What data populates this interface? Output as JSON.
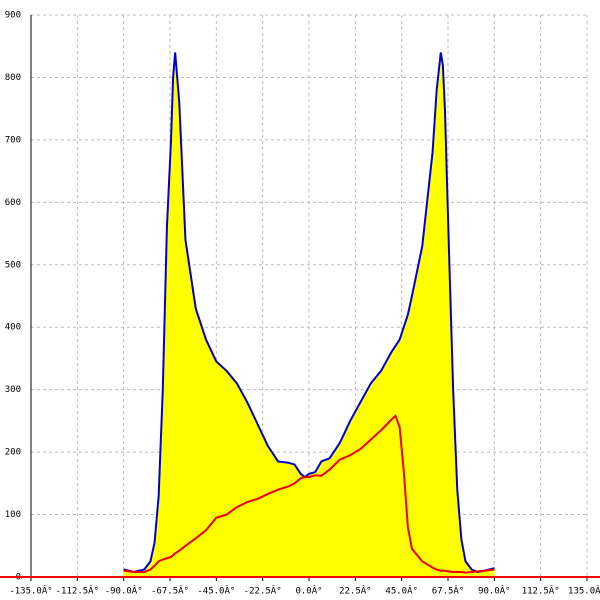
{
  "chart_data": {
    "type": "area",
    "x": [
      -90,
      -85,
      -80,
      -77,
      -75,
      -73,
      -71,
      -69,
      -67,
      -66,
      -65,
      -63,
      -60,
      -55,
      -50,
      -45,
      -40,
      -35,
      -30,
      -25,
      -20,
      -15,
      -10,
      -7,
      -4,
      -2,
      0,
      3,
      6,
      10,
      15,
      20,
      25,
      30,
      35,
      40,
      42,
      44,
      46,
      48,
      50,
      55,
      60,
      62,
      64,
      65,
      66,
      68,
      70,
      72,
      74,
      76,
      79,
      82,
      85,
      90
    ],
    "series": [
      {
        "color": "#0000cc",
        "fill": "#ffff00",
        "values": [
          12,
          8,
          12,
          25,
          55,
          130,
          300,
          560,
          700,
          800,
          840,
          760,
          540,
          430,
          380,
          345,
          330,
          310,
          280,
          245,
          210,
          185,
          183,
          180,
          165,
          160,
          165,
          168,
          185,
          190,
          215,
          250,
          280,
          310,
          330,
          360,
          370,
          380,
          400,
          420,
          450,
          530,
          680,
          780,
          840,
          820,
          750,
          520,
          300,
          140,
          60,
          25,
          12,
          8,
          10,
          14
        ]
      },
      {
        "color": "#ee0000",
        "values": [
          10,
          8,
          8,
          12,
          18,
          25,
          28,
          30,
          32,
          35,
          38,
          42,
          50,
          62,
          75,
          95,
          100,
          112,
          120,
          125,
          133,
          140,
          145,
          150,
          158,
          160,
          160,
          163,
          162,
          172,
          188,
          195,
          205,
          220,
          235,
          252,
          258,
          240,
          170,
          80,
          45,
          25,
          15,
          12,
          10,
          10,
          10,
          9,
          8,
          8,
          8,
          7,
          8,
          9,
          10,
          12
        ]
      }
    ],
    "xlim": [
      -135,
      135
    ],
    "xticks": [
      {
        "value": -135,
        "label": "-135.0Â°"
      },
      {
        "value": -112.5,
        "label": "-112.5Â°"
      },
      {
        "value": -90,
        "label": "-90.0Â°"
      },
      {
        "value": -67.5,
        "label": "-67.5Â°"
      },
      {
        "value": -45,
        "label": "-45.0Â°"
      },
      {
        "value": -22.5,
        "label": "-22.5Â°"
      },
      {
        "value": 0,
        "label": "0.0Â°"
      },
      {
        "value": 22.5,
        "label": "22.5Â°"
      },
      {
        "value": 45,
        "label": "45.0Â°"
      },
      {
        "value": 67.5,
        "label": "67.5Â°"
      },
      {
        "value": 90,
        "label": "90.0Â°"
      },
      {
        "value": 112.5,
        "label": "112.5Â°"
      },
      {
        "value": 135,
        "label": "135.0Â°"
      }
    ],
    "ylim": [
      0,
      900
    ],
    "yticks": [
      0,
      100,
      200,
      300,
      400,
      500,
      600,
      700,
      800,
      900
    ],
    "grid": true
  }
}
